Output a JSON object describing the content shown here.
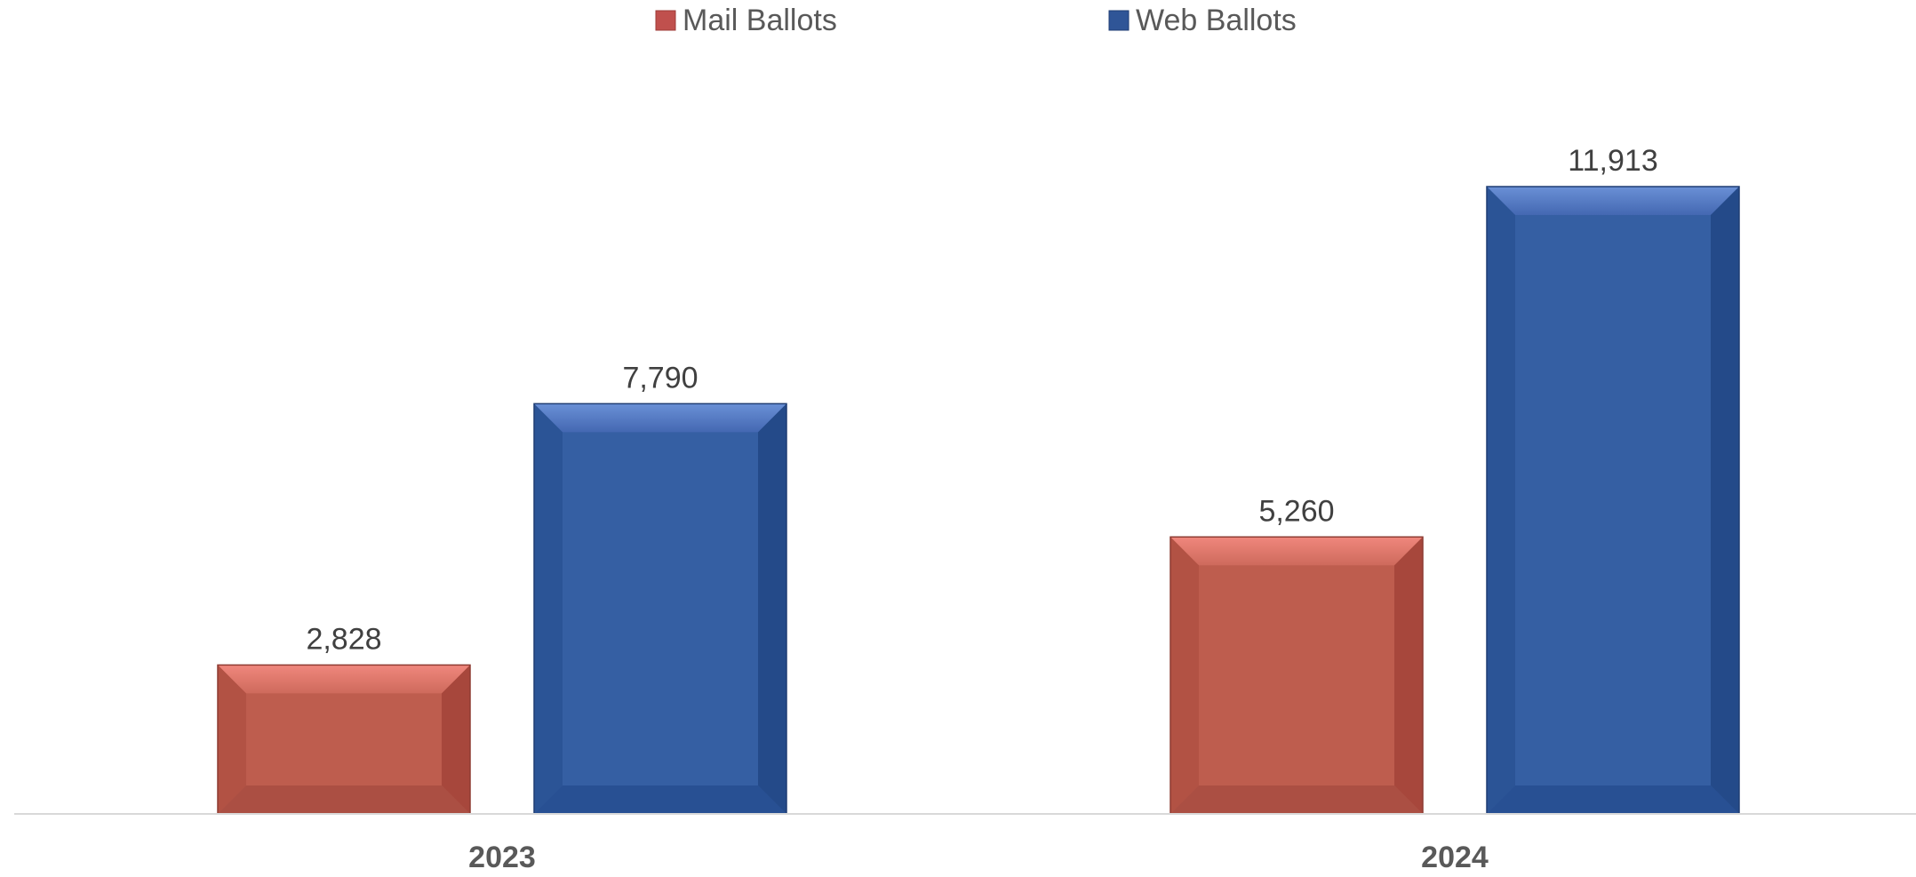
{
  "chart_data": {
    "type": "bar",
    "title": "",
    "xlabel": "",
    "ylabel": "",
    "categories": [
      "2023",
      "2024"
    ],
    "series": [
      {
        "name": "Mail Ballots",
        "values": [
          2828,
          5260
        ],
        "labels": [
          "2,828",
          "5,260"
        ],
        "color": "#C0504D"
      },
      {
        "name": "Web Ballots",
        "values": [
          7790,
          11913
        ],
        "labels": [
          "7,790",
          "11,913"
        ],
        "color": "#2F5597"
      }
    ],
    "ylim": [
      0,
      12000
    ],
    "grid": false,
    "legend_position": "top",
    "data_labels": true
  }
}
